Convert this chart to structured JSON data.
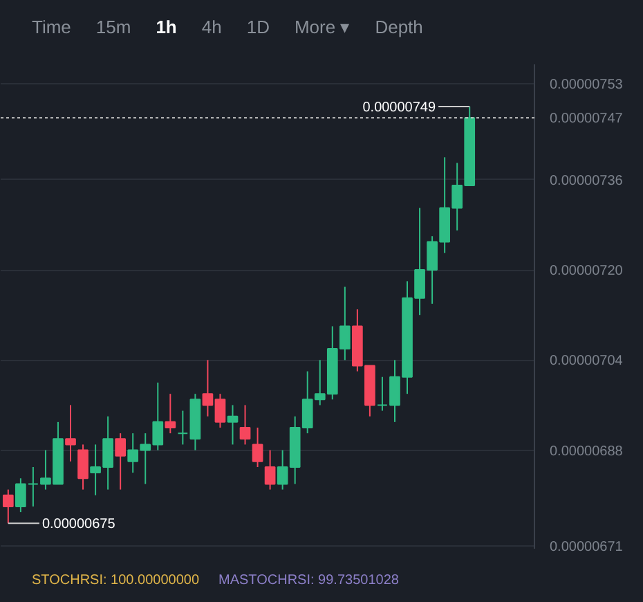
{
  "chart_data": {
    "type": "candlestick",
    "categories": [
      null,
      null,
      null,
      null,
      null,
      null,
      null,
      null,
      null,
      null,
      null,
      null,
      null,
      null,
      null,
      null,
      null,
      null,
      null,
      null,
      null,
      null,
      null,
      null,
      null,
      null,
      null,
      null,
      null,
      null,
      null,
      null,
      null,
      null,
      null,
      null,
      null,
      null
    ],
    "ohlc": [
      [
        6.8e-06,
        6.81e-06,
        6.75e-06,
        6.78e-06
      ],
      [
        6.78e-06,
        6.83e-06,
        6.77e-06,
        6.82e-06
      ],
      [
        6.82e-06,
        6.85e-06,
        6.78e-06,
        6.82e-06
      ],
      [
        6.82e-06,
        6.88e-06,
        6.81e-06,
        6.83e-06
      ],
      [
        6.82e-06,
        6.93e-06,
        6.82e-06,
        6.9e-06
      ],
      [
        6.9e-06,
        6.96e-06,
        6.86e-06,
        6.89e-06
      ],
      [
        6.88e-06,
        6.89e-06,
        6.81e-06,
        6.83e-06
      ],
      [
        6.84e-06,
        6.89e-06,
        6.8e-06,
        6.85e-06
      ],
      [
        6.85e-06,
        6.94e-06,
        6.81e-06,
        6.9e-06
      ],
      [
        6.9e-06,
        6.91e-06,
        6.81e-06,
        6.87e-06
      ],
      [
        6.86e-06,
        6.91e-06,
        6.84e-06,
        6.88e-06
      ],
      [
        6.88e-06,
        6.91e-06,
        6.82e-06,
        6.89e-06
      ],
      [
        6.89e-06,
        7e-06,
        6.88e-06,
        6.93e-06
      ],
      [
        6.93e-06,
        6.98e-06,
        6.91e-06,
        6.92e-06
      ],
      [
        6.91e-06,
        6.95e-06,
        6.89e-06,
        6.91e-06
      ],
      [
        6.9e-06,
        6.98e-06,
        6.88e-06,
        6.97e-06
      ],
      [
        6.98e-06,
        7.04e-06,
        6.94e-06,
        6.96e-06
      ],
      [
        6.97e-06,
        6.98e-06,
        6.92e-06,
        6.93e-06
      ],
      [
        6.93e-06,
        6.96e-06,
        6.89e-06,
        6.94e-06
      ],
      [
        6.92e-06,
        6.96e-06,
        6.89e-06,
        6.9e-06
      ],
      [
        6.89e-06,
        6.92e-06,
        6.85e-06,
        6.86e-06
      ],
      [
        6.85e-06,
        6.88e-06,
        6.81e-06,
        6.82e-06
      ],
      [
        6.82e-06,
        6.88e-06,
        6.81e-06,
        6.85e-06
      ],
      [
        6.85e-06,
        6.94e-06,
        6.82e-06,
        6.92e-06
      ],
      [
        6.92e-06,
        7.02e-06,
        6.91e-06,
        6.97e-06
      ],
      [
        6.97e-06,
        7.04e-06,
        6.96e-06,
        6.98e-06
      ],
      [
        6.98e-06,
        7.1e-06,
        6.97e-06,
        7.06e-06
      ],
      [
        7.06e-06,
        7.17e-06,
        7.04e-06,
        7.1e-06
      ],
      [
        7.1e-06,
        7.13e-06,
        7.02e-06,
        7.03e-06
      ],
      [
        7.03e-06,
        7.03e-06,
        6.94e-06,
        6.96e-06
      ],
      [
        6.96e-06,
        7.01e-06,
        6.95e-06,
        6.96e-06
      ],
      [
        6.96e-06,
        7.04e-06,
        6.93e-06,
        7.01e-06
      ],
      [
        7.01e-06,
        7.18e-06,
        6.98e-06,
        7.15e-06
      ],
      [
        7.15e-06,
        7.31e-06,
        7.12e-06,
        7.2e-06
      ],
      [
        7.2e-06,
        7.26e-06,
        7.14e-06,
        7.25e-06
      ],
      [
        7.25e-06,
        7.4e-06,
        7.23e-06,
        7.31e-06
      ],
      [
        7.31e-06,
        7.39e-06,
        7.27e-06,
        7.35e-06
      ],
      [
        7.35e-06,
        7.49e-06,
        7.35e-06,
        7.47e-06
      ]
    ],
    "colors": [
      "#f6465d",
      "#2ebd85",
      "#2ebd85",
      "#2ebd85",
      "#2ebd85",
      "#f6465d",
      "#f6465d",
      "#2ebd85",
      "#2ebd85",
      "#f6465d",
      "#2ebd85",
      "#2ebd85",
      "#2ebd85",
      "#f6465d",
      "#2ebd85",
      "#2ebd85",
      "#f6465d",
      "#f6465d",
      "#2ebd85",
      "#f6465d",
      "#f6465d",
      "#f6465d",
      "#2ebd85",
      "#2ebd85",
      "#2ebd85",
      "#2ebd85",
      "#2ebd85",
      "#2ebd85",
      "#f6465d",
      "#f6465d",
      "#2ebd85",
      "#2ebd85",
      "#2ebd85",
      "#2ebd85",
      "#2ebd85",
      "#2ebd85",
      "#2ebd85",
      "#2ebd85"
    ],
    "ylim": [
      6.705e-06,
      7.565e-06
    ],
    "yticks": [
      {
        "value": 6.71e-06,
        "label": "0.00000671"
      },
      {
        "value": 6.88e-06,
        "label": "0.00000688"
      },
      {
        "value": 7.04e-06,
        "label": "0.00000704"
      },
      {
        "value": 7.2e-06,
        "label": "0.00000720"
      },
      {
        "value": 7.36e-06,
        "label": "0.00000736"
      },
      {
        "value": 7.53e-06,
        "label": "0.00000753"
      }
    ],
    "grid": "y",
    "tick_labels": "y",
    "ref_lines": [
      {
        "axis": "y",
        "value": 7.47e-06,
        "label": "0.00000747",
        "color": "#cccccc",
        "line_style": "dotted"
      }
    ],
    "annotations": [
      "Time",
      "15m",
      "1h",
      "4h",
      "1D",
      "More ▾",
      "Depth",
      "0.00000749",
      "0.00000675",
      "STOCHRSI: 100.00000000",
      "MASTOCHRSI: 99.73501028"
    ]
  }
}
